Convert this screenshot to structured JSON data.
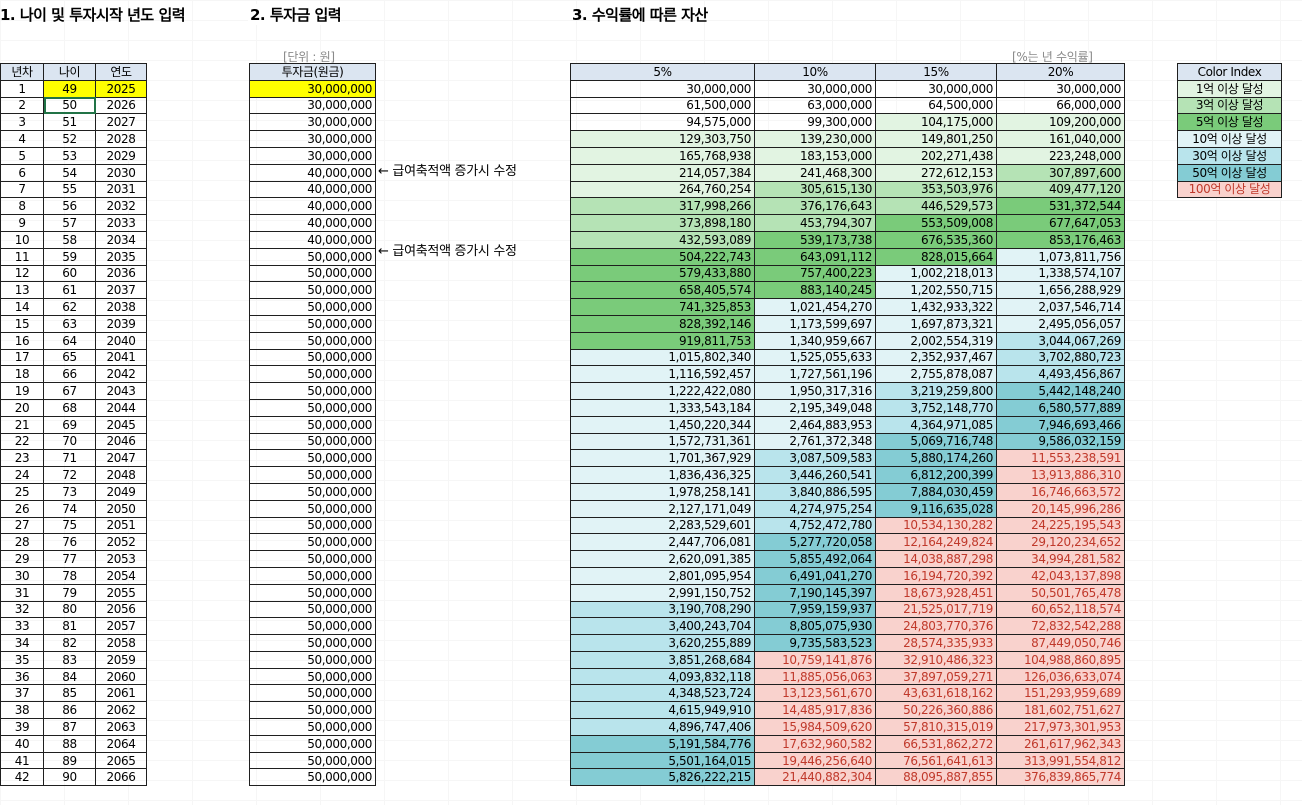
{
  "sections": {
    "s1_title": "1. 나이 및 투자시작 년도 입력",
    "s2_title": "2. 투자금 입력",
    "s3_title": "3. 수익률에 따른 자산",
    "s2_unit": "[단위 : 원]",
    "s3_unit": "[%는 년 수익률]"
  },
  "table1": {
    "headers": [
      "년차",
      "나이",
      "연도"
    ],
    "rows": [
      [
        "1",
        "49",
        "2025"
      ],
      [
        "2",
        "50",
        "2026"
      ],
      [
        "3",
        "51",
        "2027"
      ],
      [
        "4",
        "52",
        "2028"
      ],
      [
        "5",
        "53",
        "2029"
      ],
      [
        "6",
        "54",
        "2030"
      ],
      [
        "7",
        "55",
        "2031"
      ],
      [
        "8",
        "56",
        "2032"
      ],
      [
        "9",
        "57",
        "2033"
      ],
      [
        "10",
        "58",
        "2034"
      ],
      [
        "11",
        "59",
        "2035"
      ],
      [
        "12",
        "60",
        "2036"
      ],
      [
        "13",
        "61",
        "2037"
      ],
      [
        "14",
        "62",
        "2038"
      ],
      [
        "15",
        "63",
        "2039"
      ],
      [
        "16",
        "64",
        "2040"
      ],
      [
        "17",
        "65",
        "2041"
      ],
      [
        "18",
        "66",
        "2042"
      ],
      [
        "19",
        "67",
        "2043"
      ],
      [
        "20",
        "68",
        "2044"
      ],
      [
        "21",
        "69",
        "2045"
      ],
      [
        "22",
        "70",
        "2046"
      ],
      [
        "23",
        "71",
        "2047"
      ],
      [
        "24",
        "72",
        "2048"
      ],
      [
        "25",
        "73",
        "2049"
      ],
      [
        "26",
        "74",
        "2050"
      ],
      [
        "27",
        "75",
        "2051"
      ],
      [
        "28",
        "76",
        "2052"
      ],
      [
        "29",
        "77",
        "2053"
      ],
      [
        "30",
        "78",
        "2054"
      ],
      [
        "31",
        "79",
        "2055"
      ],
      [
        "32",
        "80",
        "2056"
      ],
      [
        "33",
        "81",
        "2057"
      ],
      [
        "34",
        "82",
        "2058"
      ],
      [
        "35",
        "83",
        "2059"
      ],
      [
        "36",
        "84",
        "2060"
      ],
      [
        "37",
        "85",
        "2061"
      ],
      [
        "38",
        "86",
        "2062"
      ],
      [
        "39",
        "87",
        "2063"
      ],
      [
        "40",
        "88",
        "2064"
      ],
      [
        "41",
        "89",
        "2065"
      ],
      [
        "42",
        "90",
        "2066"
      ]
    ]
  },
  "table2": {
    "header": "투자금(원금)",
    "values": [
      "30,000,000",
      "30,000,000",
      "30,000,000",
      "30,000,000",
      "30,000,000",
      "40,000,000",
      "40,000,000",
      "40,000,000",
      "40,000,000",
      "40,000,000",
      "50,000,000",
      "50,000,000",
      "50,000,000",
      "50,000,000",
      "50,000,000",
      "50,000,000",
      "50,000,000",
      "50,000,000",
      "50,000,000",
      "50,000,000",
      "50,000,000",
      "50,000,000",
      "50,000,000",
      "50,000,000",
      "50,000,000",
      "50,000,000",
      "50,000,000",
      "50,000,000",
      "50,000,000",
      "50,000,000",
      "50,000,000",
      "50,000,000",
      "50,000,000",
      "50,000,000",
      "50,000,000",
      "50,000,000",
      "50,000,000",
      "50,000,000",
      "50,000,000",
      "50,000,000",
      "50,000,000",
      "50,000,000"
    ],
    "notes": [
      {
        "row": 6,
        "text": "← 급여축적액 증가시 수정"
      },
      {
        "row": 11,
        "text": "← 급여축적액 증가시 수정"
      }
    ]
  },
  "table3": {
    "headers": [
      "5%",
      "10%",
      "15%",
      "20%"
    ],
    "rows": [
      [
        [
          "30,000,000",
          0
        ],
        [
          "30,000,000",
          0
        ],
        [
          "30,000,000",
          0
        ],
        [
          "30,000,000",
          0
        ]
      ],
      [
        [
          "61,500,000",
          0
        ],
        [
          "63,000,000",
          0
        ],
        [
          "64,500,000",
          0
        ],
        [
          "66,000,000",
          0
        ]
      ],
      [
        [
          "94,575,000",
          0
        ],
        [
          "99,300,000",
          0
        ],
        [
          "104,175,000",
          1
        ],
        [
          "109,200,000",
          1
        ]
      ],
      [
        [
          "129,303,750",
          1
        ],
        [
          "139,230,000",
          1
        ],
        [
          "149,801,250",
          1
        ],
        [
          "161,040,000",
          1
        ]
      ],
      [
        [
          "165,768,938",
          1
        ],
        [
          "183,153,000",
          1
        ],
        [
          "202,271,438",
          1
        ],
        [
          "223,248,000",
          1
        ]
      ],
      [
        [
          "214,057,384",
          1
        ],
        [
          "241,468,300",
          1
        ],
        [
          "272,612,153",
          1
        ],
        [
          "307,897,600",
          2
        ]
      ],
      [
        [
          "264,760,254",
          1
        ],
        [
          "305,615,130",
          2
        ],
        [
          "353,503,976",
          2
        ],
        [
          "409,477,120",
          2
        ]
      ],
      [
        [
          "317,998,266",
          2
        ],
        [
          "376,176,643",
          2
        ],
        [
          "446,529,573",
          2
        ],
        [
          "531,372,544",
          3
        ]
      ],
      [
        [
          "373,898,180",
          2
        ],
        [
          "453,794,307",
          2
        ],
        [
          "553,509,008",
          3
        ],
        [
          "677,647,053",
          3
        ]
      ],
      [
        [
          "432,593,089",
          2
        ],
        [
          "539,173,738",
          3
        ],
        [
          "676,535,360",
          3
        ],
        [
          "853,176,463",
          3
        ]
      ],
      [
        [
          "504,222,743",
          3
        ],
        [
          "643,091,112",
          3
        ],
        [
          "828,015,664",
          3
        ],
        [
          "1,073,811,756",
          4
        ]
      ],
      [
        [
          "579,433,880",
          3
        ],
        [
          "757,400,223",
          3
        ],
        [
          "1,002,218,013",
          4
        ],
        [
          "1,338,574,107",
          4
        ]
      ],
      [
        [
          "658,405,574",
          3
        ],
        [
          "883,140,245",
          3
        ],
        [
          "1,202,550,715",
          4
        ],
        [
          "1,656,288,929",
          4
        ]
      ],
      [
        [
          "741,325,853",
          3
        ],
        [
          "1,021,454,270",
          4
        ],
        [
          "1,432,933,322",
          4
        ],
        [
          "2,037,546,714",
          4
        ]
      ],
      [
        [
          "828,392,146",
          3
        ],
        [
          "1,173,599,697",
          4
        ],
        [
          "1,697,873,321",
          4
        ],
        [
          "2,495,056,057",
          4
        ]
      ],
      [
        [
          "919,811,753",
          3
        ],
        [
          "1,340,959,667",
          4
        ],
        [
          "2,002,554,319",
          4
        ],
        [
          "3,044,067,269",
          5
        ]
      ],
      [
        [
          "1,015,802,340",
          4
        ],
        [
          "1,525,055,633",
          4
        ],
        [
          "2,352,937,467",
          4
        ],
        [
          "3,702,880,723",
          5
        ]
      ],
      [
        [
          "1,116,592,457",
          4
        ],
        [
          "1,727,561,196",
          4
        ],
        [
          "2,755,878,087",
          4
        ],
        [
          "4,493,456,867",
          5
        ]
      ],
      [
        [
          "1,222,422,080",
          4
        ],
        [
          "1,950,317,316",
          4
        ],
        [
          "3,219,259,800",
          5
        ],
        [
          "5,442,148,240",
          6
        ]
      ],
      [
        [
          "1,333,543,184",
          4
        ],
        [
          "2,195,349,048",
          4
        ],
        [
          "3,752,148,770",
          5
        ],
        [
          "6,580,577,889",
          6
        ]
      ],
      [
        [
          "1,450,220,344",
          4
        ],
        [
          "2,464,883,953",
          4
        ],
        [
          "4,364,971,085",
          5
        ],
        [
          "7,946,693,466",
          6
        ]
      ],
      [
        [
          "1,572,731,361",
          4
        ],
        [
          "2,761,372,348",
          4
        ],
        [
          "5,069,716,748",
          6
        ],
        [
          "9,586,032,159",
          6
        ]
      ],
      [
        [
          "1,701,367,929",
          4
        ],
        [
          "3,087,509,583",
          5
        ],
        [
          "5,880,174,260",
          6
        ],
        [
          "11,553,238,591",
          7
        ]
      ],
      [
        [
          "1,836,436,325",
          4
        ],
        [
          "3,446,260,541",
          5
        ],
        [
          "6,812,200,399",
          6
        ],
        [
          "13,913,886,310",
          7
        ]
      ],
      [
        [
          "1,978,258,141",
          4
        ],
        [
          "3,840,886,595",
          5
        ],
        [
          "7,884,030,459",
          6
        ],
        [
          "16,746,663,572",
          7
        ]
      ],
      [
        [
          "2,127,171,049",
          4
        ],
        [
          "4,274,975,254",
          5
        ],
        [
          "9,116,635,028",
          6
        ],
        [
          "20,145,996,286",
          7
        ]
      ],
      [
        [
          "2,283,529,601",
          4
        ],
        [
          "4,752,472,780",
          5
        ],
        [
          "10,534,130,282",
          7
        ],
        [
          "24,225,195,543",
          7
        ]
      ],
      [
        [
          "2,447,706,081",
          4
        ],
        [
          "5,277,720,058",
          6
        ],
        [
          "12,164,249,824",
          7
        ],
        [
          "29,120,234,652",
          7
        ]
      ],
      [
        [
          "2,620,091,385",
          4
        ],
        [
          "5,855,492,064",
          6
        ],
        [
          "14,038,887,298",
          7
        ],
        [
          "34,994,281,582",
          7
        ]
      ],
      [
        [
          "2,801,095,954",
          4
        ],
        [
          "6,491,041,270",
          6
        ],
        [
          "16,194,720,392",
          7
        ],
        [
          "42,043,137,898",
          7
        ]
      ],
      [
        [
          "2,991,150,752",
          4
        ],
        [
          "7,190,145,397",
          6
        ],
        [
          "18,673,928,451",
          7
        ],
        [
          "50,501,765,478",
          7
        ]
      ],
      [
        [
          "3,190,708,290",
          5
        ],
        [
          "7,959,159,937",
          6
        ],
        [
          "21,525,017,719",
          7
        ],
        [
          "60,652,118,574",
          7
        ]
      ],
      [
        [
          "3,400,243,704",
          5
        ],
        [
          "8,805,075,930",
          6
        ],
        [
          "24,803,770,376",
          7
        ],
        [
          "72,832,542,288",
          7
        ]
      ],
      [
        [
          "3,620,255,889",
          5
        ],
        [
          "9,735,583,523",
          6
        ],
        [
          "28,574,335,933",
          7
        ],
        [
          "87,449,050,746",
          7
        ]
      ],
      [
        [
          "3,851,268,684",
          5
        ],
        [
          "10,759,141,876",
          7
        ],
        [
          "32,910,486,323",
          7
        ],
        [
          "104,988,860,895",
          7
        ]
      ],
      [
        [
          "4,093,832,118",
          5
        ],
        [
          "11,885,056,063",
          7
        ],
        [
          "37,897,059,271",
          7
        ],
        [
          "126,036,633,074",
          7
        ]
      ],
      [
        [
          "4,348,523,724",
          5
        ],
        [
          "13,123,561,670",
          7
        ],
        [
          "43,631,618,162",
          7
        ],
        [
          "151,293,959,689",
          7
        ]
      ],
      [
        [
          "4,615,949,910",
          5
        ],
        [
          "14,485,917,836",
          7
        ],
        [
          "50,226,360,886",
          7
        ],
        [
          "181,602,751,627",
          7
        ]
      ],
      [
        [
          "4,896,747,406",
          5
        ],
        [
          "15,984,509,620",
          7
        ],
        [
          "57,810,315,019",
          7
        ],
        [
          "217,973,301,953",
          7
        ]
      ],
      [
        [
          "5,191,584,776",
          6
        ],
        [
          "17,632,960,582",
          7
        ],
        [
          "66,531,862,272",
          7
        ],
        [
          "261,617,962,343",
          7
        ]
      ],
      [
        [
          "5,501,164,015",
          6
        ],
        [
          "19,446,256,640",
          7
        ],
        [
          "76,561,641,613",
          7
        ],
        [
          "313,991,554,812",
          7
        ]
      ],
      [
        [
          "5,826,222,215",
          6
        ],
        [
          "21,440,882,304",
          7
        ],
        [
          "88,095,887,855",
          7
        ],
        [
          "376,839,865,774",
          7
        ]
      ]
    ]
  },
  "color_index": {
    "header": "Color Index",
    "items": [
      {
        "label": "1억 이상 달성",
        "color": "#e2f4e2"
      },
      {
        "label": "3억 이상 달성",
        "color": "#b5e3b5"
      },
      {
        "label": "5억 이상 달성",
        "color": "#7acb7a"
      },
      {
        "label": "10억 이상 달성",
        "color": "#e1f3f6"
      },
      {
        "label": "30억 이상 달성",
        "color": "#b9e4ec"
      },
      {
        "label": "50억 이상 달성",
        "color": "#84ccd4"
      },
      {
        "label": "100억 이상 달성",
        "color": "#f9d2cd"
      }
    ]
  }
}
